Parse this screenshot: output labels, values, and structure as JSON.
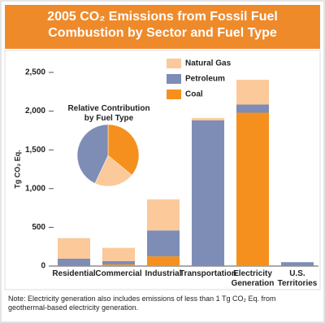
{
  "chart_data": [
    {
      "type": "bar",
      "stacked": true,
      "title": "2005 CO₂ Emissions from Fossil Fuel Combustion by Sector and Fuel Type",
      "y_label": "Tg CO₂ Eq.",
      "categories": [
        "Residential",
        "Commercial",
        "Industrial",
        "Transportation",
        "Electricity Generation",
        "U.S. Territories"
      ],
      "series": [
        {
          "name": "Coal",
          "color": "#f5901e",
          "values": [
            0,
            20,
            125,
            0,
            1980,
            0
          ]
        },
        {
          "name": "Petroleum",
          "color": "#7d8db5",
          "values": [
            95,
            45,
            335,
            1880,
            105,
            50
          ]
        },
        {
          "name": "Natural Gas",
          "color": "#fbc99a",
          "values": [
            265,
            170,
            400,
            30,
            320,
            0
          ]
        }
      ],
      "ylim": [
        0,
        2500
      ],
      "yticks": [
        0,
        500,
        {
          "value": 1000,
          "label": "1,000"
        },
        {
          "value": 1500,
          "label": "1,500"
        },
        {
          "value": 2000,
          "label": "2,000"
        },
        {
          "value": 2500,
          "label": "2,500"
        }
      ],
      "legend": "top-right"
    },
    {
      "type": "pie",
      "title": "Relative Contribution by Fuel Type",
      "values": [
        36,
        21,
        43
      ],
      "colors": [
        "#f5901e",
        "#fbc99a",
        "#7d8db5"
      ]
    }
  ],
  "note": "Note: Electricity generation also includes emissions of less than 1 Tg CO₂ Eq. from geothermal-based electricity generation."
}
